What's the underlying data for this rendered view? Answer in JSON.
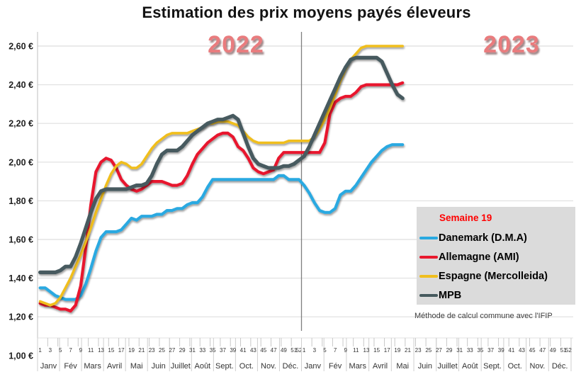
{
  "title": "Estimation des prix moyens payés éleveurs",
  "year_labels": [
    "2022",
    "2023"
  ],
  "footnote": "Méthode de calcul commune avec l'IFIP",
  "legend": {
    "header": "Semaine 19",
    "header_color": "#ff0000",
    "items": [
      {
        "label": "Danemark (D.M.A)",
        "color": "#29a9e1"
      },
      {
        "label": "Allemagne (AMI)",
        "color": "#e8182d"
      },
      {
        "label": "Espagne (Mercolleida)",
        "color": "#f0be1e"
      },
      {
        "label": "MPB",
        "color": "#465a5e"
      }
    ]
  },
  "chart_data": {
    "type": "line",
    "title": "Estimation des prix moyens payés éleveurs",
    "ylabel": "",
    "xlabel": "",
    "ylim": [
      1.0,
      2.6
    ],
    "ytick_step": 0.2,
    "ytick_labels": [
      "2,60 €",
      "2,40 €",
      "2,20 €",
      "2,00 €",
      "1,80 €",
      "1,60 €",
      "1,40 €",
      "1,20 €",
      "1,00 €"
    ],
    "years": [
      "2022",
      "2023"
    ],
    "week_tick_labels": [
      "1",
      "3",
      "5",
      "7",
      "9",
      "11",
      "13",
      "15",
      "17",
      "19",
      "21",
      "23",
      "25",
      "27",
      "29",
      "31",
      "33",
      "35",
      "37",
      "39",
      "41",
      "43",
      "45",
      "47",
      "49",
      "51",
      "52"
    ],
    "months": [
      "Janv",
      "Fév",
      "Mars",
      "Avril",
      "Mai",
      "Juin",
      "Juillet",
      "Août",
      "Sept.",
      "Oct.",
      "Nov.",
      "Déc."
    ],
    "grid": true,
    "legend_position": "middle-right",
    "annotation": "Semaine 19",
    "series": [
      {
        "name": "Danemark (D.M.A)",
        "color": "#29a9e1",
        "values_2022": [
          1.35,
          1.35,
          1.33,
          1.31,
          1.3,
          1.29,
          1.29,
          1.29,
          1.31,
          1.37,
          1.45,
          1.54,
          1.61,
          1.64,
          1.64,
          1.64,
          1.65,
          1.68,
          1.71,
          1.7,
          1.72,
          1.72,
          1.72,
          1.73,
          1.73,
          1.75,
          1.75,
          1.76,
          1.76,
          1.78,
          1.79,
          1.79,
          1.82,
          1.87,
          1.91,
          1.91,
          1.91,
          1.91,
          1.91,
          1.91,
          1.91,
          1.91,
          1.91,
          1.91,
          1.91,
          1.91,
          1.91,
          1.93,
          1.93,
          1.91,
          1.91,
          1.91
        ],
        "values_2023": [
          1.88,
          1.84,
          1.79,
          1.75,
          1.74,
          1.74,
          1.76,
          1.83,
          1.85,
          1.85,
          1.88,
          1.92,
          1.96,
          2.0,
          2.03,
          2.06,
          2.08,
          2.09,
          2.09,
          2.09
        ]
      },
      {
        "name": "Allemagne (AMI)",
        "color": "#e8182d",
        "values_2022": [
          1.27,
          1.26,
          1.26,
          1.25,
          1.24,
          1.24,
          1.23,
          1.26,
          1.36,
          1.56,
          1.78,
          1.95,
          2.0,
          2.02,
          2.01,
          1.97,
          1.91,
          1.88,
          1.86,
          1.85,
          1.86,
          1.88,
          1.9,
          1.9,
          1.9,
          1.89,
          1.88,
          1.88,
          1.89,
          1.93,
          1.99,
          2.04,
          2.07,
          2.1,
          2.12,
          2.14,
          2.15,
          2.15,
          2.13,
          2.08,
          2.06,
          2.02,
          1.97,
          1.95,
          1.94,
          1.95,
          1.96,
          2.02,
          2.05,
          2.05,
          2.05,
          2.05
        ],
        "values_2023": [
          2.05,
          2.05,
          2.05,
          2.05,
          2.1,
          2.25,
          2.31,
          2.33,
          2.34,
          2.34,
          2.36,
          2.39,
          2.4,
          2.4,
          2.4,
          2.4,
          2.4,
          2.4,
          2.4,
          2.41
        ]
      },
      {
        "name": "Espagne (Mercolleida)",
        "color": "#f0be1e",
        "values_2022": [
          1.28,
          1.27,
          1.26,
          1.27,
          1.3,
          1.35,
          1.4,
          1.46,
          1.52,
          1.59,
          1.66,
          1.74,
          1.81,
          1.88,
          1.94,
          1.98,
          2.0,
          1.99,
          1.97,
          1.97,
          1.99,
          2.03,
          2.07,
          2.1,
          2.12,
          2.14,
          2.15,
          2.15,
          2.15,
          2.15,
          2.16,
          2.17,
          2.18,
          2.2,
          2.2,
          2.21,
          2.21,
          2.21,
          2.2,
          2.19,
          2.16,
          2.13,
          2.11,
          2.1,
          2.1,
          2.1,
          2.1,
          2.1,
          2.1,
          2.11,
          2.11,
          2.11
        ],
        "values_2023": [
          2.11,
          2.11,
          2.13,
          2.17,
          2.22,
          2.28,
          2.35,
          2.42,
          2.48,
          2.53,
          2.56,
          2.59,
          2.6,
          2.6,
          2.6,
          2.6,
          2.6,
          2.6,
          2.6,
          2.6
        ]
      },
      {
        "name": "MPB",
        "color": "#465a5e",
        "values_2022": [
          1.43,
          1.43,
          1.43,
          1.43,
          1.44,
          1.46,
          1.46,
          1.51,
          1.58,
          1.66,
          1.74,
          1.81,
          1.85,
          1.86,
          1.86,
          1.86,
          1.86,
          1.86,
          1.87,
          1.88,
          1.88,
          1.89,
          1.93,
          1.99,
          2.04,
          2.06,
          2.06,
          2.06,
          2.08,
          2.11,
          2.14,
          2.16,
          2.18,
          2.2,
          2.21,
          2.22,
          2.22,
          2.23,
          2.24,
          2.22,
          2.15,
          2.08,
          2.02,
          1.99,
          1.98,
          1.97,
          1.97,
          1.97,
          1.98,
          1.98,
          1.99,
          2.01
        ],
        "values_2023": [
          2.03,
          2.08,
          2.14,
          2.2,
          2.26,
          2.32,
          2.38,
          2.44,
          2.49,
          2.53,
          2.54,
          2.54,
          2.54,
          2.54,
          2.54,
          2.52,
          2.46,
          2.4,
          2.35,
          2.33
        ]
      }
    ]
  }
}
